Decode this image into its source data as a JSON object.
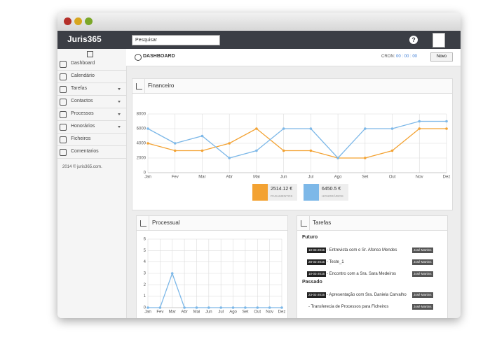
{
  "app": {
    "logo": "Juris365",
    "search_placeholder": "Pesquisar",
    "help": "?"
  },
  "sidebar": {
    "items": [
      "Dashboard",
      "Calendário",
      "Tarefas",
      "Contactos",
      "Processos",
      "Honorários",
      "Ficheiros",
      "Comentarios"
    ],
    "footer": "2014 © juris365.com."
  },
  "dashboard": {
    "title": "DASHBOARD",
    "cron_label": "CRON:",
    "cron_time": "00 : 00 : 00",
    "new_button": "Novo"
  },
  "chart_data": [
    {
      "type": "line",
      "title": "Financeiro",
      "categories": [
        "Jan",
        "Fev",
        "Mar",
        "Abr",
        "Mai",
        "Jun",
        "Jul",
        "Ago",
        "Set",
        "Out",
        "Nov",
        "Dez"
      ],
      "series": [
        {
          "name": "PAGAMENTOS",
          "total": "2514.12 €",
          "color": "#f3a232",
          "values": [
            4000,
            3000,
            3000,
            4000,
            6000,
            3000,
            3000,
            2000,
            2000,
            3000,
            6000,
            6000
          ]
        },
        {
          "name": "HONORÁRIOS",
          "total": "6450.5 €",
          "color": "#7db8e8",
          "values": [
            6000,
            4000,
            5000,
            2000,
            3000,
            6000,
            6000,
            2000,
            6000,
            6000,
            7000,
            7000
          ]
        }
      ],
      "ylim": [
        0,
        8000
      ],
      "yticks": [
        0,
        2000,
        4000,
        6000,
        8000
      ],
      "grid": true
    },
    {
      "type": "line",
      "title": "Processual",
      "categories": [
        "Jan",
        "Fev",
        "Mar",
        "Abr",
        "Mai",
        "Jun",
        "Jul",
        "Ago",
        "Set",
        "Out",
        "Nov",
        "Dez"
      ],
      "series": [
        {
          "color": "#7db8e8",
          "values": [
            0,
            0,
            3,
            0,
            0,
            0,
            0,
            0,
            0,
            0,
            0,
            0
          ]
        }
      ],
      "ylim": [
        0,
        6
      ],
      "yticks": [
        0,
        1,
        2,
        3,
        4,
        5,
        6
      ],
      "grid": true
    }
  ],
  "tasks": {
    "title": "Tarefas",
    "groups": [
      {
        "name": "Futuro",
        "items": [
          {
            "date": "10-03-2015",
            "text": "- Entrevista com o Sr. Afonso Mendes",
            "user": "José Martins"
          },
          {
            "date": "28-03-2015",
            "text": "- Teste_1",
            "user": "José Martins"
          },
          {
            "date": "10-03-2015",
            "text": "- Encontro com a Sra. Sara Medeiros",
            "user": "José Martins"
          }
        ]
      },
      {
        "name": "Passado",
        "items": [
          {
            "date": "23-02-2015",
            "text": "- Apresentação com Sra. Daniela Carvalho",
            "user": "José Martins"
          },
          {
            "text": "- Transferecia de Processos para Ficheiros",
            "user": "José Martins"
          }
        ]
      }
    ]
  }
}
